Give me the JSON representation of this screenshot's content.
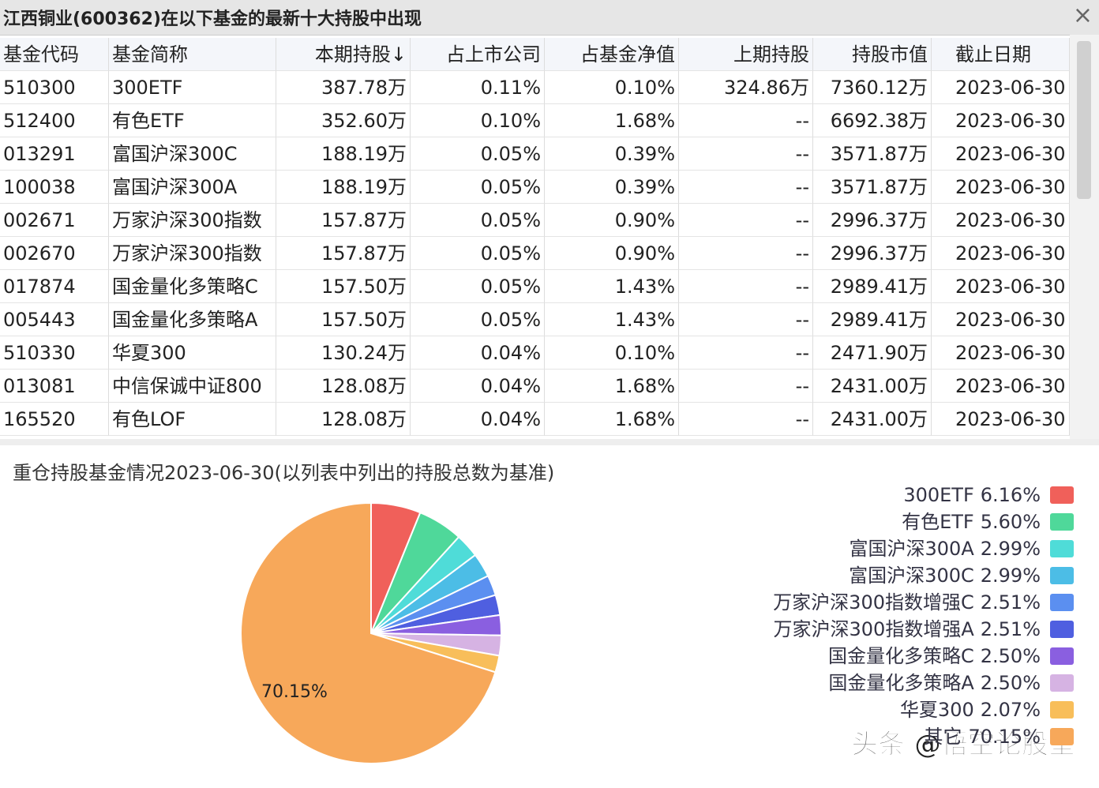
{
  "window": {
    "title": "江西铜业(600362)在以下基金的最新十大持股中出现"
  },
  "table": {
    "header": [
      "基金代码",
      "基金简称",
      "本期持股↓",
      "占上市公司",
      "占基金净值",
      "上期持股",
      "持股市值",
      "截止日期"
    ],
    "rows": [
      [
        "510300",
        "300ETF",
        "387.78万",
        "0.11%",
        "0.10%",
        "324.86万",
        "7360.12万",
        "2023-06-30"
      ],
      [
        "512400",
        "有色ETF",
        "352.60万",
        "0.10%",
        "1.68%",
        "--",
        "6692.38万",
        "2023-06-30"
      ],
      [
        "013291",
        "富国沪深300C",
        "188.19万",
        "0.05%",
        "0.39%",
        "--",
        "3571.87万",
        "2023-06-30"
      ],
      [
        "100038",
        "富国沪深300A",
        "188.19万",
        "0.05%",
        "0.39%",
        "--",
        "3571.87万",
        "2023-06-30"
      ],
      [
        "002671",
        "万家沪深300指数",
        "157.87万",
        "0.05%",
        "0.90%",
        "--",
        "2996.37万",
        "2023-06-30"
      ],
      [
        "002670",
        "万家沪深300指数",
        "157.87万",
        "0.05%",
        "0.90%",
        "--",
        "2996.37万",
        "2023-06-30"
      ],
      [
        "017874",
        "国金量化多策略C",
        "157.50万",
        "0.05%",
        "1.43%",
        "--",
        "2989.41万",
        "2023-06-30"
      ],
      [
        "005443",
        "国金量化多策略A",
        "157.50万",
        "0.05%",
        "1.43%",
        "--",
        "2989.41万",
        "2023-06-30"
      ],
      [
        "510330",
        "华夏300",
        "130.24万",
        "0.04%",
        "0.10%",
        "--",
        "2471.90万",
        "2023-06-30"
      ],
      [
        "013081",
        "中信保诚中证800",
        "128.08万",
        "0.04%",
        "1.68%",
        "--",
        "2431.00万",
        "2023-06-30"
      ],
      [
        "165520",
        "有色LOF",
        "128.08万",
        "0.04%",
        "1.68%",
        "--",
        "2431.00万",
        "2023-06-30"
      ]
    ]
  },
  "chart_data": {
    "type": "pie",
    "title": "重仓持股基金情况2023-06-30(以列表中列出的持股总数为基准)",
    "categories": [
      "300ETF",
      "有色ETF",
      "富国沪深300A",
      "富国沪深300C",
      "万家沪深300指数增强C",
      "万家沪深300指数增强A",
      "国金量化多策略C",
      "国金量化多策略A",
      "华夏300",
      "其它"
    ],
    "values": [
      6.16,
      5.6,
      2.99,
      2.99,
      2.51,
      2.51,
      2.5,
      2.5,
      2.07,
      70.15
    ],
    "value_labels": [
      "6.16%",
      "5.60%",
      "2.99%",
      "2.99%",
      "2.51%",
      "2.51%",
      "2.50%",
      "2.50%",
      "2.07%",
      "70.15%"
    ],
    "colors": [
      "#f0605a",
      "#4fd89a",
      "#4fdcd8",
      "#4cbde6",
      "#5b8ff0",
      "#4f5fe0",
      "#8a5fe0",
      "#d6b3e3",
      "#f8be5a",
      "#f7a85a"
    ],
    "legend": "right"
  },
  "watermark": "头条 @悟空论股堂"
}
